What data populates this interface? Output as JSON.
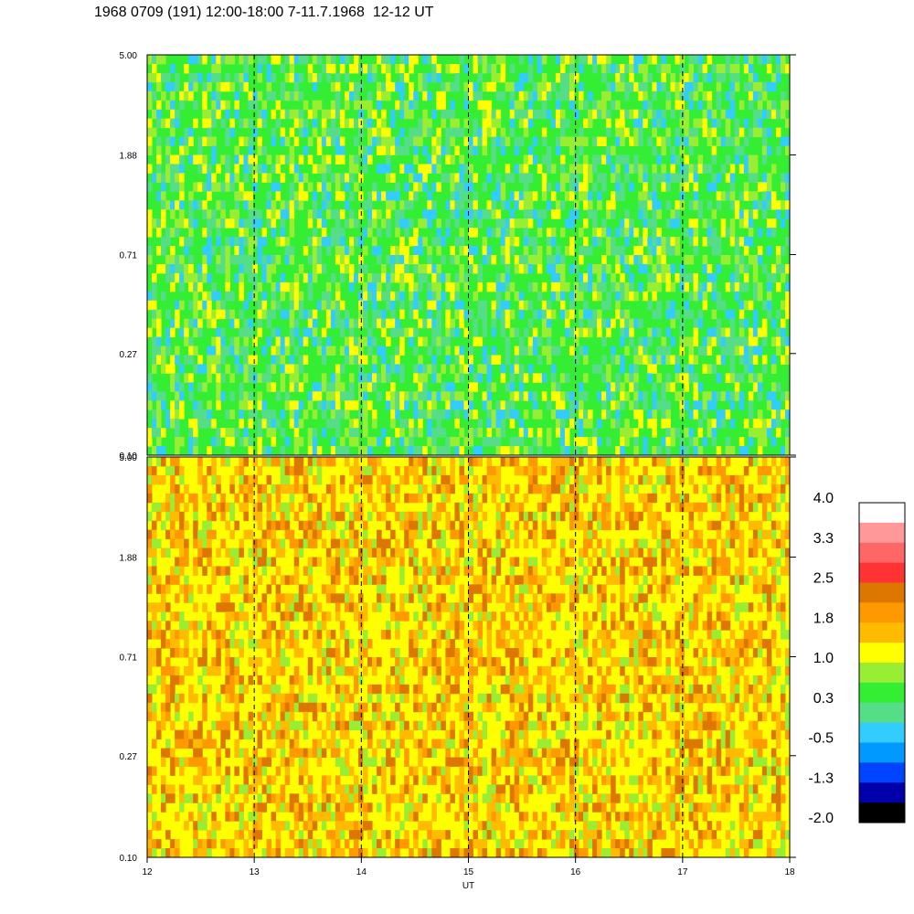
{
  "chart_data": {
    "type": "heatmap",
    "title": "1968 0709 (191) 12:00-18:00 7-11.7.1968  12-12 UT",
    "xlabel": "UT",
    "xlim": [
      12,
      18
    ],
    "x_ticks": [
      "12",
      "13",
      "14",
      "15",
      "16",
      "17",
      "18"
    ],
    "vertical_dashed_lines_at": [
      13,
      14,
      15,
      16,
      17
    ],
    "panels": [
      {
        "name": "upper",
        "y_scale": "log",
        "ylim": [
          0.1,
          5.0
        ],
        "y_ticks": [
          "0.10",
          "0.27",
          "0.71",
          "1.88",
          "5.00"
        ],
        "dominant_colors": [
          "#33ee33",
          "#55dd88",
          "#99ee33",
          "#ffff00",
          "#33ccff"
        ]
      },
      {
        "name": "lower",
        "y_scale": "log",
        "ylim": [
          0.1,
          5.0
        ],
        "y_ticks": [
          "0.10",
          "0.27",
          "0.71",
          "1.88",
          "5.00"
        ],
        "dominant_colors": [
          "#ffff00",
          "#ffbb00",
          "#ff9900",
          "#dd7700",
          "#99ee33"
        ]
      }
    ],
    "colorbar": {
      "labels": [
        "4.0",
        "3.3",
        "2.5",
        "1.8",
        "1.0",
        "0.3",
        "-0.5",
        "-1.3",
        "-2.0"
      ],
      "colors_top_to_bottom": [
        "#ffffff",
        "#ff9999",
        "#ff6666",
        "#ff3333",
        "#dd7700",
        "#ff9900",
        "#ffbb00",
        "#ffff00",
        "#99ee33",
        "#33ee33",
        "#55dd88",
        "#33ccff",
        "#0099ff",
        "#0044ff",
        "#0000aa",
        "#000000"
      ]
    }
  }
}
